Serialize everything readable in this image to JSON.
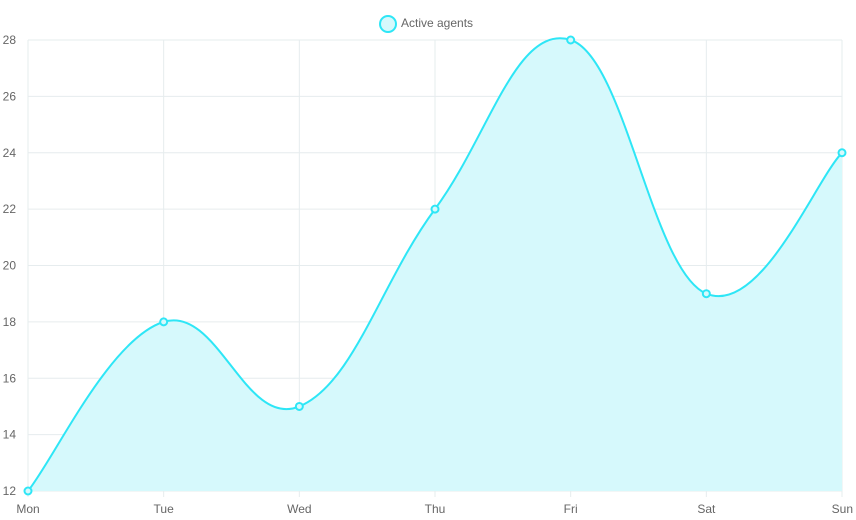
{
  "chart_data": {
    "type": "area",
    "title": "",
    "xlabel": "",
    "ylabel": "",
    "categories": [
      "Mon",
      "Tue",
      "Wed",
      "Thu",
      "Fri",
      "Sat",
      "Sun"
    ],
    "series": [
      {
        "name": "Active agents",
        "values": [
          12,
          18,
          15,
          22,
          28,
          19,
          24
        ]
      }
    ],
    "ylim": [
      12,
      28
    ],
    "y_ticks": [
      "12",
      "14",
      "16",
      "18",
      "20",
      "22",
      "24",
      "26",
      "28"
    ],
    "grid": true,
    "legend_position": "top",
    "colors": {
      "line": "#2ee6f6",
      "fill": "#d6f9fc",
      "grid": "#e6ecee"
    }
  }
}
